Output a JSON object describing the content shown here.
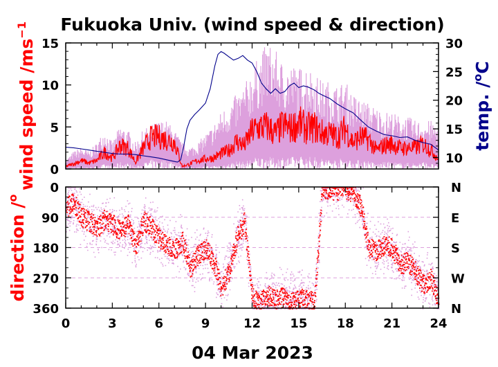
{
  "chart_data": [
    {
      "type": "line",
      "title": "Fukuoka Univ. (wind speed & direction)",
      "ylabel": "wind speed /ms",
      "ylabel_superscript": "−1",
      "y2label": "temp. /",
      "y2label_suffix": "C",
      "y2label_degree": "o",
      "xlim": [
        0,
        24
      ],
      "ylim": [
        0,
        15
      ],
      "y2lim": [
        8,
        30
      ],
      "y_ticks": [
        "0",
        "5",
        "10",
        "15"
      ],
      "y2_ticks": [
        "10",
        "15",
        "20",
        "25",
        "30"
      ],
      "colors": {
        "wind_gust": "#dda0dd",
        "wind_mean": "#ff0000",
        "temperature": "#00008b"
      },
      "series": [
        {
          "key": "wind_gust_upper",
          "x": [
            0,
            0.5,
            1,
            1.5,
            2,
            2.5,
            3,
            3.5,
            4,
            4.5,
            5,
            5.5,
            6,
            6.5,
            7,
            7.5,
            8,
            8.5,
            9,
            9.5,
            10,
            10.5,
            11,
            11.5,
            12,
            12.5,
            13,
            13.5,
            14,
            14.5,
            15,
            15.5,
            16,
            16.5,
            17,
            17.5,
            18,
            18.5,
            19,
            19.5,
            20,
            20.5,
            21,
            21.5,
            22,
            22.5,
            23,
            23.5,
            24
          ],
          "values": [
            1,
            2,
            2.5,
            2,
            3,
            4.5,
            3,
            5,
            4.5,
            3,
            4.5,
            5,
            5.5,
            5.5,
            4.5,
            3,
            2.5,
            3,
            4,
            5,
            6.5,
            7.5,
            8.5,
            9.5,
            11.5,
            13,
            14.5,
            13.5,
            12,
            12,
            11.5,
            12,
            11,
            10,
            10,
            9.5,
            10,
            8.5,
            8,
            7.5,
            7,
            6.5,
            6.5,
            6,
            6,
            5.5,
            5.5,
            5.5,
            5
          ]
        },
        {
          "name": "",
          "key": "wind_mean",
          "x": [
            0,
            0.5,
            1,
            1.5,
            2,
            2.5,
            3,
            3.5,
            4,
            4.5,
            5,
            5.5,
            6,
            6.5,
            7,
            7.5,
            8,
            8.5,
            9,
            9.5,
            10,
            10.5,
            11,
            11.5,
            12,
            12.5,
            13,
            13.5,
            14,
            14.5,
            15,
            15.5,
            16,
            16.5,
            17,
            17.5,
            18,
            18.5,
            19,
            19.5,
            20,
            20.5,
            21,
            21.5,
            22,
            22.5,
            23,
            23.5,
            24
          ],
          "values": [
            0.3,
            0.6,
            1,
            0.7,
            1,
            2,
            1.3,
            2.8,
            2.5,
            0.8,
            2.5,
            3.8,
            3.8,
            3.5,
            3.2,
            0.3,
            0.6,
            1,
            1.2,
            1.3,
            1.8,
            2.2,
            3.3,
            2.8,
            4.5,
            5,
            5,
            4.2,
            5.2,
            4.8,
            5.5,
            4.8,
            5,
            4.3,
            4.2,
            3.8,
            4.8,
            3.2,
            3.8,
            3.5,
            2.2,
            2.8,
            3,
            2.5,
            2.5,
            2.5,
            3,
            2.3,
            1.2
          ]
        },
        {
          "name": "",
          "key": "temperature",
          "axis": "right",
          "x": [
            0,
            0.5,
            1,
            1.5,
            2,
            2.5,
            3,
            3.5,
            4,
            4.5,
            5,
            5.5,
            6,
            6.5,
            7,
            7.2,
            7.4,
            7.6,
            7.8,
            8,
            8.3,
            8.6,
            9,
            9.3,
            9.6,
            9.8,
            10,
            10.2,
            10.5,
            10.8,
            11.1,
            11.4,
            11.7,
            12,
            12.3,
            12.6,
            12.9,
            13.2,
            13.5,
            13.8,
            14.1,
            14.4,
            14.7,
            15,
            15.3,
            15.6,
            16,
            16.3,
            16.6,
            17,
            17.5,
            18,
            18.5,
            19,
            19.5,
            20,
            20.5,
            21,
            21.5,
            22,
            22.5,
            23,
            23.5,
            24
          ],
          "values": [
            11.8,
            11.7,
            11.5,
            11.3,
            11.1,
            10.9,
            10.7,
            10.6,
            10.6,
            10.5,
            10.3,
            10.1,
            9.9,
            9.6,
            9.3,
            9.2,
            9.6,
            12,
            15,
            16.5,
            17.5,
            18.3,
            19.5,
            22,
            26,
            28,
            28.5,
            28.2,
            27.6,
            27,
            27.3,
            27.8,
            27,
            26.5,
            25,
            23,
            22,
            21.2,
            22,
            21.2,
            21.5,
            22.5,
            23,
            22.2,
            22.5,
            22.3,
            21.8,
            21.2,
            20.8,
            20.3,
            19.3,
            18.5,
            17.8,
            16.5,
            15.3,
            14.6,
            14,
            13.8,
            13.5,
            13.6,
            13,
            12.6,
            12.3,
            11.3
          ]
        }
      ]
    },
    {
      "type": "scatter",
      "ylabel": "direction /",
      "ylabel_degree": "o",
      "xlabel": "04 Mar 2023",
      "xlim": [
        0,
        24
      ],
      "ylim": [
        0,
        360
      ],
      "y_inverted": true,
      "x_ticks": [
        "0",
        "3",
        "6",
        "9",
        "12",
        "15",
        "18",
        "21",
        "24"
      ],
      "y_ticks": [
        "0",
        "90",
        "180",
        "270",
        "360"
      ],
      "y2_ticks": [
        "N",
        "E",
        "S",
        "W",
        "N"
      ],
      "colors": {
        "dir_gust": "#dda0dd",
        "dir_mean": "#ff0000"
      },
      "series": [
        {
          "key": "direction_mean",
          "x": [
            0,
            0.5,
            1,
            1.5,
            2,
            2.5,
            3,
            3.5,
            4,
            4.5,
            5,
            5.5,
            6,
            6.5,
            7,
            7.5,
            8,
            8.5,
            9,
            9.5,
            10,
            10.5,
            11,
            11.5,
            12,
            12.5,
            13,
            13.5,
            14,
            14.5,
            15,
            15.5,
            16,
            16.5,
            17,
            17.5,
            18,
            18.5,
            19,
            19.5,
            20,
            20.5,
            21,
            21.5,
            22,
            22.5,
            23,
            23.5,
            24
          ],
          "values": [
            60,
            45,
            90,
            100,
            120,
            95,
            110,
            130,
            110,
            180,
            100,
            120,
            150,
            170,
            185,
            160,
            240,
            200,
            180,
            220,
            300,
            250,
            150,
            100,
            330,
            340,
            320,
            335,
            325,
            345,
            330,
            335,
            340,
            5,
            5,
            10,
            5,
            15,
            60,
            180,
            190,
            170,
            180,
            230,
            220,
            250,
            290,
            270,
            340
          ]
        }
      ]
    }
  ]
}
